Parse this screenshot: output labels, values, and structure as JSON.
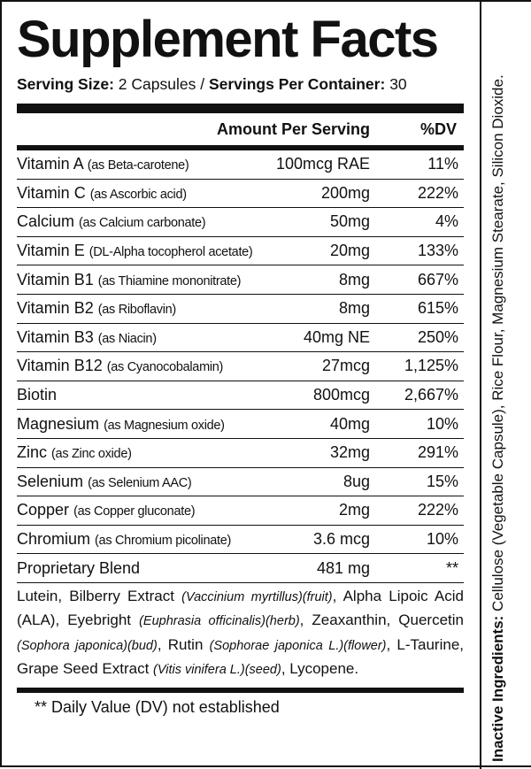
{
  "title": "Supplement Facts",
  "serving": {
    "size_label": "Serving Size:",
    "size_value": "2 Capsules /",
    "per_container_label": "Servings Per Container:",
    "per_container_value": "30"
  },
  "header": {
    "amount": "Amount Per Serving",
    "dv": "%DV"
  },
  "rows": [
    {
      "name": "Vitamin A",
      "source": "(as Beta-carotene)",
      "amount": "100mcg RAE",
      "dv": "11%"
    },
    {
      "name": "Vitamin C",
      "source": "(as Ascorbic acid)",
      "amount": "200mg",
      "dv": "222%"
    },
    {
      "name": "Calcium",
      "source": "(as Calcium carbonate)",
      "amount": "50mg",
      "dv": "4%"
    },
    {
      "name": "Vitamin E",
      "source": "(DL-Alpha tocopherol acetate)",
      "amount": "20mg",
      "dv": "133%"
    },
    {
      "name": "Vitamin B1",
      "source": "(as Thiamine mononitrate)",
      "amount": "8mg",
      "dv": "667%"
    },
    {
      "name": "Vitamin B2",
      "source": "(as Riboflavin)",
      "amount": "8mg",
      "dv": "615%"
    },
    {
      "name": "Vitamin B3",
      "source": "(as Niacin)",
      "amount": "40mg NE",
      "dv": "250%"
    },
    {
      "name": "Vitamin B12",
      "source": "(as Cyanocobalamin)",
      "amount": "27mcg",
      "dv": "1,125%"
    },
    {
      "name": "Biotin",
      "source": "",
      "amount": "800mcg",
      "dv": "2,667%"
    },
    {
      "name": "Magnesium",
      "source": "(as Magnesium oxide)",
      "amount": "40mg",
      "dv": "10%"
    },
    {
      "name": "Zinc",
      "source": "(as Zinc oxide)",
      "amount": "32mg",
      "dv": "291%"
    },
    {
      "name": "Selenium",
      "source": "(as Selenium AAC)",
      "amount": "8ug",
      "dv": "15%"
    },
    {
      "name": "Copper",
      "source": "(as Copper gluconate)",
      "amount": "2mg",
      "dv": "222%"
    },
    {
      "name": "Chromium",
      "source": "(as Chromium picolinate)",
      "amount": "3.6 mcg",
      "dv": "10%"
    },
    {
      "name": "Proprietary Blend",
      "source": "",
      "amount": "481 mg",
      "dv": "**"
    }
  ],
  "blend": [
    {
      "t": "Lutein, Bilberry Extract ",
      "i": false
    },
    {
      "t": "(Vaccinium myrtillus)(fruit)",
      "i": true
    },
    {
      "t": ", Alpha Lipoic Acid (ALA), Eyebright ",
      "i": false
    },
    {
      "t": "(Euphrasia officinalis)(herb)",
      "i": true
    },
    {
      "t": ", Zeaxanthin, Quercetin ",
      "i": false
    },
    {
      "t": "(Sophora japonica)(bud)",
      "i": true
    },
    {
      "t": ", Rutin ",
      "i": false
    },
    {
      "t": "(Sophorae japonica L.)(flower)",
      "i": true
    },
    {
      "t": ", L-Taurine, Grape Seed Extract ",
      "i": false
    },
    {
      "t": "(Vitis vinifera L.)(seed)",
      "i": true
    },
    {
      "t": ", Lycopene.",
      "i": false
    }
  ],
  "footnote": "** Daily Value (DV) not established",
  "inactive": {
    "label": "Inactive Ingredients:",
    "text": " Cellulose (Vegetable Capsule), Rice Flour, Magnesium Stearate, Silicon Dioxide."
  }
}
